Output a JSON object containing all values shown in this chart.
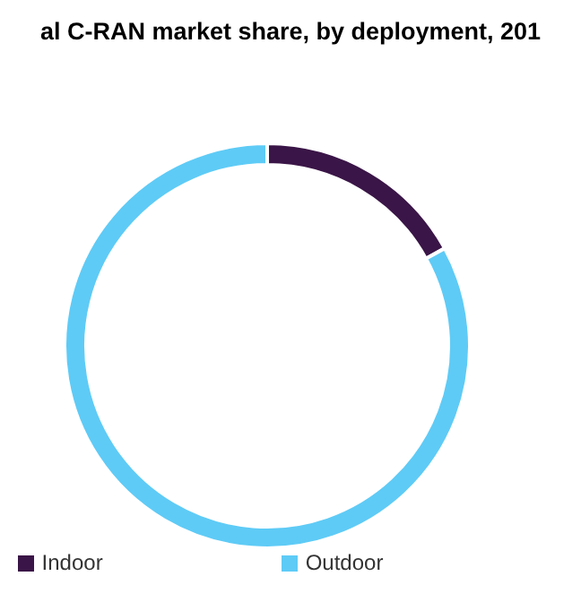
{
  "chart_data": {
    "type": "donut",
    "title": "al C-RAN market share, by deployment, 201",
    "categories": [
      "Indoor",
      "Outdoor"
    ],
    "values": [
      17,
      83
    ],
    "colors": [
      "#3a1547",
      "#5ecbf6"
    ],
    "legend": "bottom"
  }
}
